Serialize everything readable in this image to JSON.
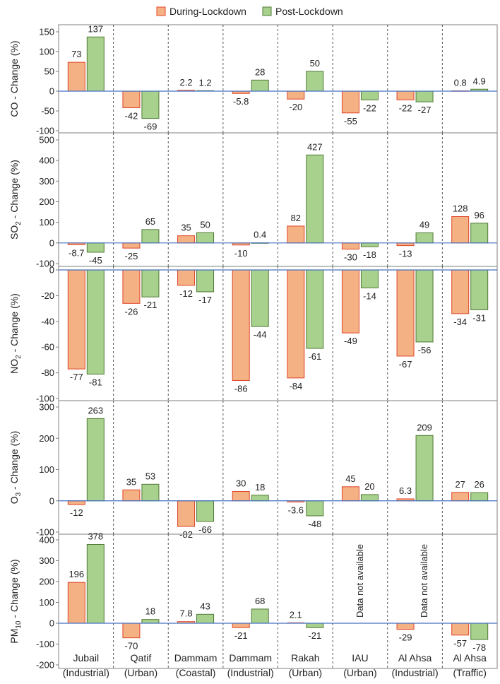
{
  "colors": {
    "during": "#f4b183",
    "during_edge": "#e0452b",
    "post": "#a9d18e",
    "post_edge": "#4f7a34",
    "zero_line": "#4472c4"
  },
  "chart_data": {
    "type": "bar",
    "legend": {
      "placement": "top-center",
      "series": [
        "During-Lockdown",
        "Post-Lockdown"
      ]
    },
    "categories": [
      [
        "Jubail",
        "(Industrial)"
      ],
      [
        "Qatif",
        "(Urban)"
      ],
      [
        "Dammam",
        "(Coastal)"
      ],
      [
        "Dammam",
        "(Industrial)"
      ],
      [
        "Rakah",
        "(Urban)"
      ],
      [
        "IAU",
        "(Urban)"
      ],
      [
        "Al Ahsa",
        "(Industrial)"
      ],
      [
        "Al Ahsa",
        "(Traffic)"
      ]
    ],
    "panels": [
      {
        "ylabel_pre": "CO - Change (%)",
        "ylabel_sub": "",
        "ylabel_post": "",
        "ylim": [
          -100,
          150
        ],
        "ticks": [
          -100,
          -50,
          0,
          50,
          100,
          150
        ],
        "series": [
          {
            "name": "During-Lockdown",
            "values": [
              73,
              -42,
              2.2,
              -5.8,
              -20,
              -55,
              -22,
              0.8
            ],
            "labels": [
              "73",
              "-42",
              "2.2",
              "-5.8",
              "-20",
              "-55",
              "-22",
              "0.8"
            ]
          },
          {
            "name": "Post-Lockdown",
            "values": [
              137,
              -69,
              1.2,
              28,
              50,
              -22,
              -27,
              4.9
            ],
            "labels": [
              "137",
              "-69",
              "1.2",
              "28",
              "50",
              "-22",
              "-27",
              "4.9"
            ]
          }
        ]
      },
      {
        "ylabel_pre": "SO",
        "ylabel_sub": "2",
        "ylabel_post": " - Change (%)",
        "ylim": [
          -100,
          500
        ],
        "ticks": [
          -100,
          0,
          100,
          200,
          300,
          400,
          500
        ],
        "series": [
          {
            "name": "During-Lockdown",
            "values": [
              -8.7,
              -25,
              35,
              -10,
              82,
              -30,
              -13,
              128
            ],
            "labels": [
              "-8.7",
              "-25",
              "35",
              "-10",
              "82",
              "-30",
              "-13",
              "128"
            ]
          },
          {
            "name": "Post-Lockdown",
            "values": [
              -45,
              65,
              50,
              0.4,
              427,
              -18,
              49,
              96
            ],
            "labels": [
              "-45",
              "65",
              "50",
              "0.4",
              "427",
              "-18",
              "49",
              "96"
            ]
          }
        ]
      },
      {
        "ylabel_pre": "NO",
        "ylabel_sub": "2",
        "ylabel_post": " - Change (%)",
        "ylim": [
          -100,
          0
        ],
        "ticks": [
          -100,
          -80,
          -60,
          -40,
          -20,
          0
        ],
        "series": [
          {
            "name": "During-Lockdown",
            "values": [
              -77,
              -26,
              -12,
              -86,
              -84,
              -49,
              -67,
              -34
            ],
            "labels": [
              "-77",
              "-26",
              "-12",
              "-86",
              "-84",
              "-49",
              "-67",
              "-34"
            ]
          },
          {
            "name": "Post-Lockdown",
            "values": [
              -81,
              -21,
              -17,
              -44,
              -61,
              -14,
              -56,
              -31
            ],
            "labels": [
              "-81",
              "-21",
              "-17",
              "-44",
              "-61",
              "-14",
              "-56",
              "-31"
            ]
          }
        ]
      },
      {
        "ylabel_pre": "O",
        "ylabel_sub": "3",
        "ylabel_post": " - Change (%)",
        "ylim": [
          -100,
          300
        ],
        "ticks": [
          -100,
          0,
          100,
          200,
          300
        ],
        "series": [
          {
            "name": "During-Lockdown",
            "values": [
              -12,
              35,
              -82,
              30,
              -3.6,
              45,
              6.3,
              27
            ],
            "labels": [
              "-12",
              "35",
              "-82",
              "30",
              "-3.6",
              "45",
              "6.3",
              "27"
            ]
          },
          {
            "name": "Post-Lockdown",
            "values": [
              263,
              53,
              -66,
              18,
              -48,
              20,
              209,
              26
            ],
            "labels": [
              "263",
              "53",
              "-66",
              "18",
              "-48",
              "20",
              "209",
              "26"
            ]
          }
        ]
      },
      {
        "ylabel_pre": "PM",
        "ylabel_sub": "10",
        "ylabel_post": " - Change (%)",
        "ylim": [
          -200,
          400
        ],
        "ticks": [
          -200,
          -100,
          0,
          100,
          200,
          300,
          400
        ],
        "series": [
          {
            "name": "During-Lockdown",
            "values": [
              196,
              -70,
              7.8,
              -21,
              2.1,
              null,
              -29,
              -57
            ],
            "labels": [
              "196",
              "-70",
              "7.8",
              "-21",
              "2.1",
              null,
              "-29",
              "-57"
            ]
          },
          {
            "name": "Post-Lockdown",
            "values": [
              378,
              18,
              43,
              68,
              -21,
              null,
              null,
              -78
            ],
            "labels": [
              "378",
              "18",
              "43",
              "68",
              "-21",
              null,
              null,
              "-78"
            ]
          }
        ],
        "annotations": [
          {
            "category_index": 5,
            "text": "Data not available"
          },
          {
            "category_index": 6,
            "series_index": 1,
            "text": "Data not available"
          }
        ]
      }
    ]
  }
}
